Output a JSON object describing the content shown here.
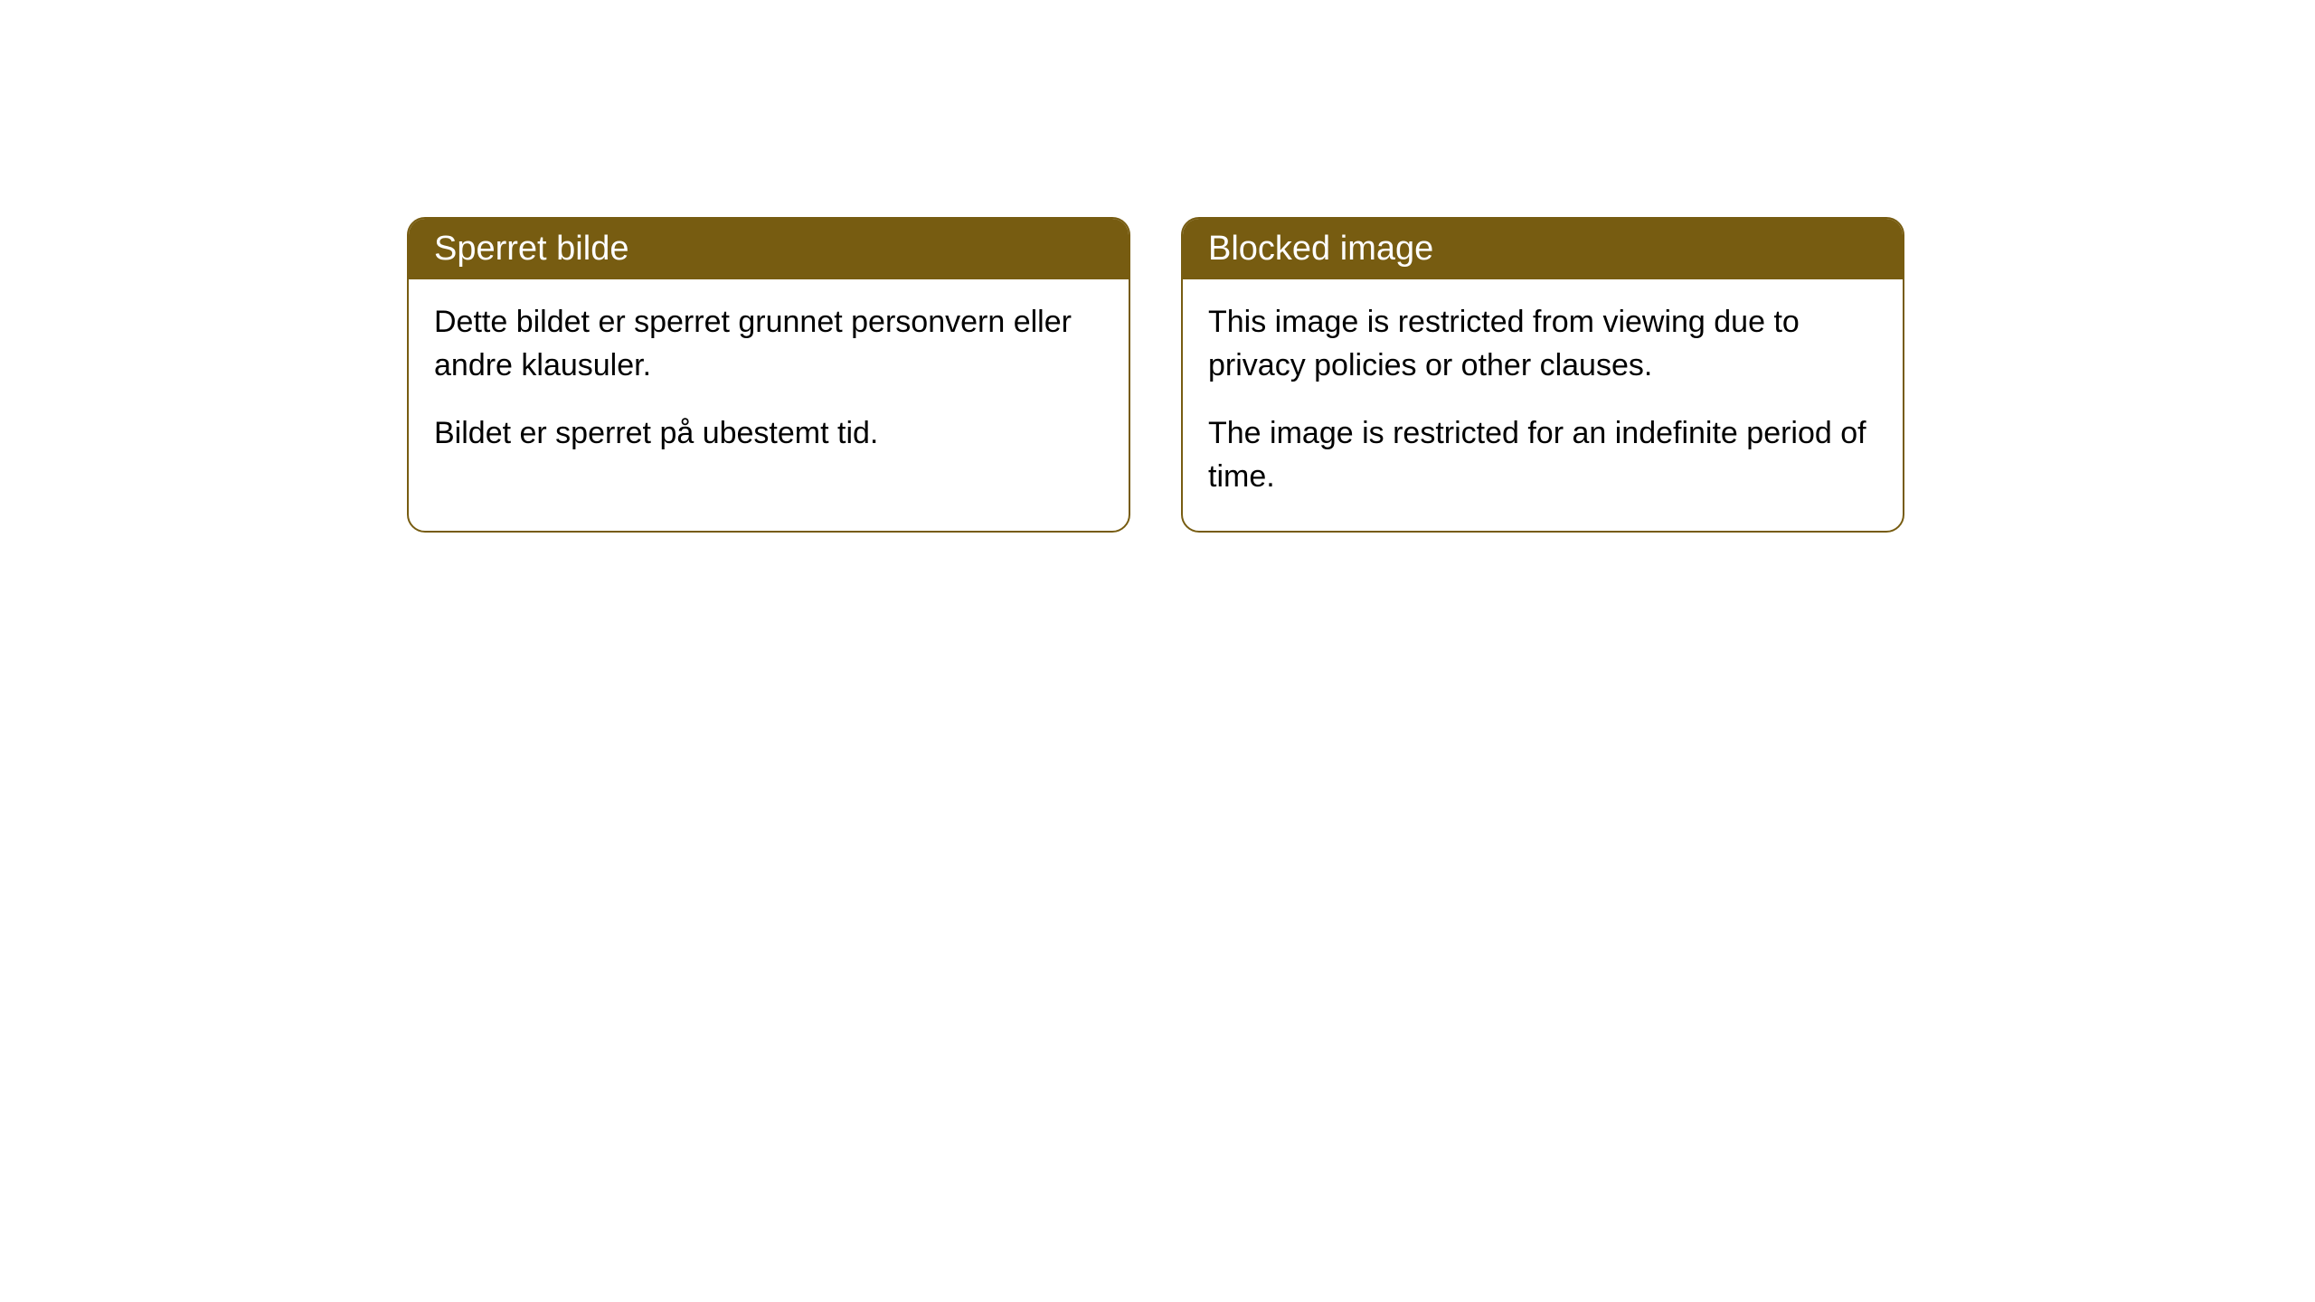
{
  "cards": [
    {
      "title": "Sperret bilde",
      "paragraph1": "Dette bildet er sperret grunnet personvern eller andre klausuler.",
      "paragraph2": "Bildet er sperret på ubestemt tid."
    },
    {
      "title": "Blocked image",
      "paragraph1": "This image is restricted from viewing due to privacy policies or other clauses.",
      "paragraph2": "The image is restricted for an indefinite period of time."
    }
  ],
  "styling": {
    "header_background": "#775c11",
    "header_text_color": "#ffffff",
    "border_color": "#775c11",
    "body_background": "#ffffff",
    "body_text_color": "#000000",
    "border_radius": 20,
    "title_fontsize": 38,
    "body_fontsize": 34
  }
}
